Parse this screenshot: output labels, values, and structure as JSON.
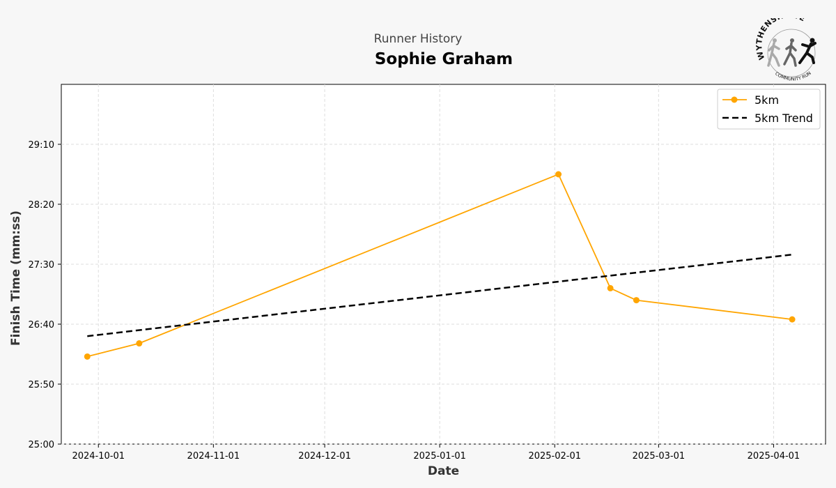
{
  "header": {
    "subtitle": "Runner History",
    "runner_name": "Sophie Graham"
  },
  "logo": {
    "arc_text": "WYTHENSHAWE",
    "bottom_text": "COMMUNITY RUN"
  },
  "chart_data": {
    "type": "line",
    "xlabel": "Date",
    "ylabel": "Finish Time (mm:ss)",
    "x_ticks": [
      "2024-10-01",
      "2024-11-01",
      "2024-12-01",
      "2025-01-01",
      "2025-02-01",
      "2025-03-01",
      "2025-04-01"
    ],
    "y_ticks": [
      "25:00",
      "25:50",
      "26:40",
      "27:30",
      "28:20",
      "29:10"
    ],
    "xlim": [
      "2024-09-21",
      "2025-04-15"
    ],
    "ylim": [
      "25:00",
      "30:00"
    ],
    "grid": true,
    "legend_position": "top-right",
    "series": [
      {
        "name": "5km",
        "style": "solid-markers",
        "color": "#ffa500",
        "x": [
          "2024-09-28",
          "2024-10-12",
          "2025-02-02",
          "2025-02-16",
          "2025-02-23",
          "2025-04-06"
        ],
        "y": [
          "26:13",
          "26:24",
          "28:45",
          "27:10",
          "27:00",
          "26:44"
        ]
      },
      {
        "name": "5km Trend",
        "style": "dashed",
        "color": "#000000",
        "x": [
          "2024-09-28",
          "2025-04-06"
        ],
        "y": [
          "26:30",
          "27:38"
        ]
      }
    ]
  }
}
